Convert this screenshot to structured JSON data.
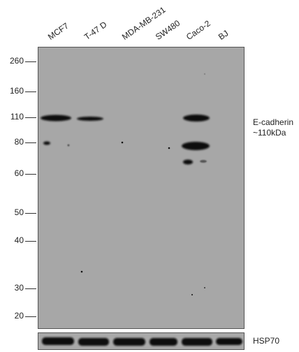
{
  "lanes": [
    "MCF7",
    "T-47 D",
    "MDA-MB-231",
    "SW480",
    "Caco-2",
    "BJ"
  ],
  "markers": [
    "260",
    "160",
    "110",
    "80",
    "60",
    "50",
    "40",
    "30",
    "20"
  ],
  "target_label_line1": "E-cadherin",
  "target_label_line2": "~110kDa",
  "control_label": "HSP70",
  "colors": {
    "membrane": "#a7a7a7",
    "band": "#111111"
  }
}
